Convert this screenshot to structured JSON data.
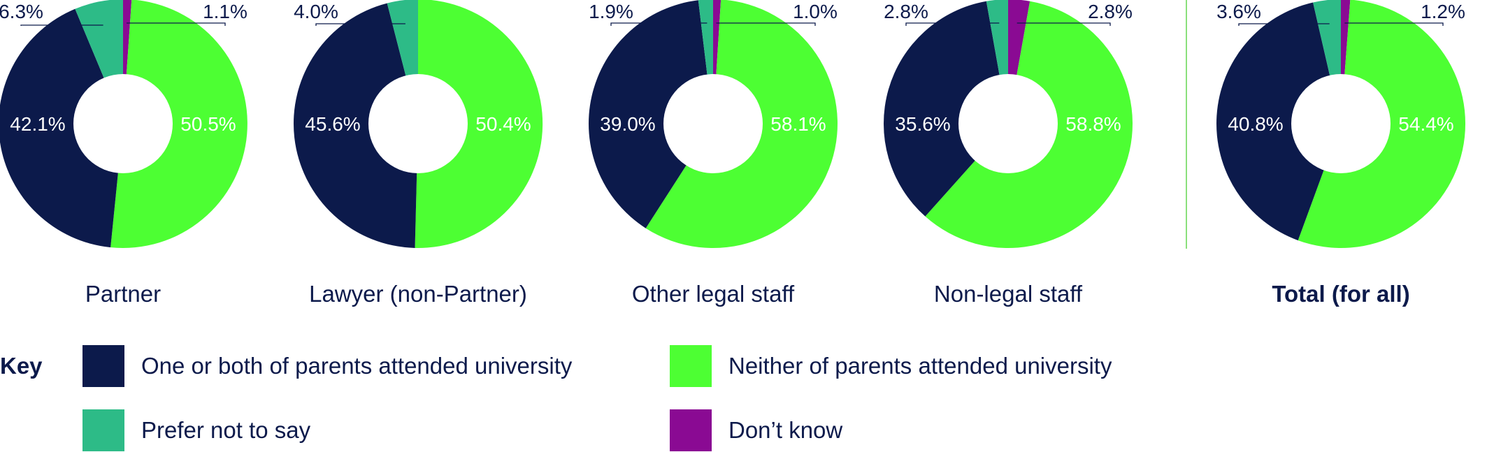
{
  "colors": {
    "one_or_both": "#0c1a4b",
    "neither": "#4dff33",
    "prefer_not": "#2dbb87",
    "dont_know": "#8a0a93",
    "divider": "#8be07c",
    "text": "#0c1a4b"
  },
  "chart_data": {
    "type": "pie",
    "variant": "donut",
    "series_keys": [
      "neither",
      "one_or_both",
      "prefer_not",
      "dont_know"
    ],
    "charts": [
      {
        "label": "Partner",
        "bold": false,
        "values": {
          "dont_know": 1.1,
          "neither": 50.5,
          "one_or_both": 42.1,
          "prefer_not": 6.3
        },
        "labels": {
          "dont_know": "1.1%",
          "neither": "50.5%",
          "one_or_both": "42.1%",
          "prefer_not": "6.3%"
        }
      },
      {
        "label": "Lawyer (non-Partner)",
        "bold": false,
        "values": {
          "neither": 50.4,
          "one_or_both": 45.6,
          "prefer_not": 4.0
        },
        "labels": {
          "neither": "50.4%",
          "one_or_both": "45.6%",
          "prefer_not": "4.0%"
        }
      },
      {
        "label": "Other legal staff",
        "bold": false,
        "values": {
          "dont_know": 1.0,
          "neither": 58.1,
          "one_or_both": 39.0,
          "prefer_not": 1.9
        },
        "labels": {
          "dont_know": "1.0%",
          "neither": "58.1%",
          "one_or_both": "39.0%",
          "prefer_not": "1.9%"
        }
      },
      {
        "label": "Non-legal staff",
        "bold": false,
        "values": {
          "dont_know": 2.8,
          "neither": 58.8,
          "one_or_both": 35.6,
          "prefer_not": 2.8
        },
        "labels": {
          "dont_know": "2.8%",
          "neither": "58.8%",
          "one_or_both": "35.6%",
          "prefer_not": "2.8%"
        }
      },
      {
        "label": "Total (for all)",
        "bold": true,
        "values": {
          "dont_know": 1.2,
          "neither": 54.4,
          "one_or_both": 40.8,
          "prefer_not": 3.6
        },
        "labels": {
          "dont_know": "1.2%",
          "neither": "54.4%",
          "one_or_both": "40.8%",
          "prefer_not": "3.6%"
        }
      }
    ],
    "legend": {
      "title": "Key",
      "placement": "bottom",
      "items": [
        {
          "key": "one_or_both",
          "label": "One or both of parents attended university"
        },
        {
          "key": "neither",
          "label": "Neither of parents attended university"
        },
        {
          "key": "prefer_not",
          "label": "Prefer not to say"
        },
        {
          "key": "dont_know",
          "label": "Don’t know"
        }
      ]
    }
  }
}
